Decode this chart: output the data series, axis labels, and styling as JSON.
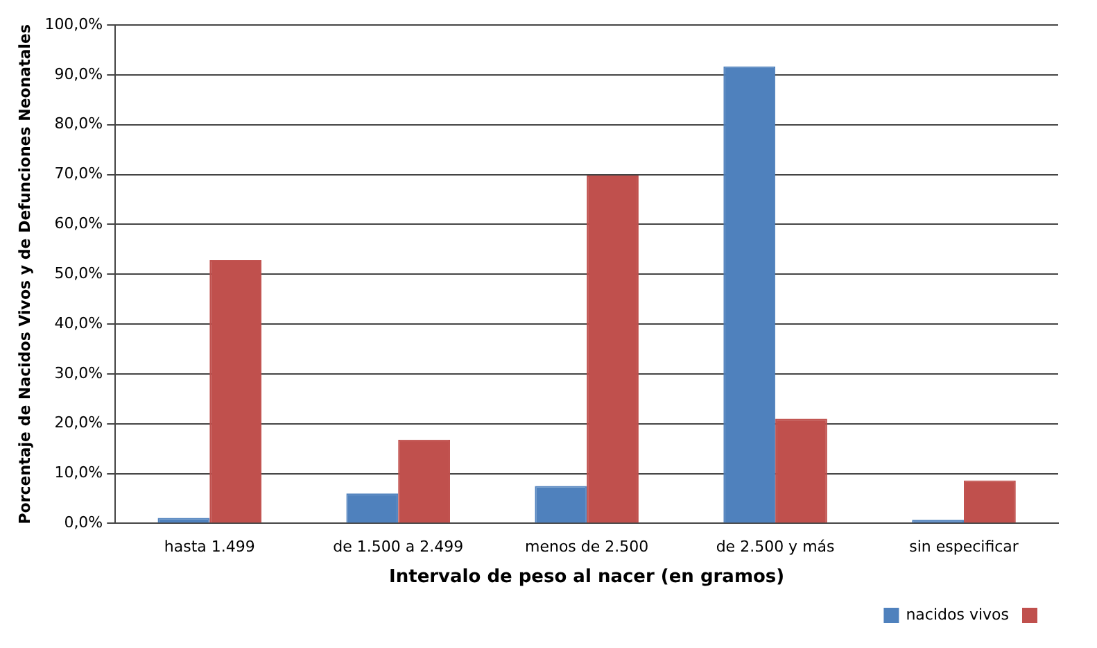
{
  "chart_data": {
    "type": "bar",
    "xlabel": "Intervalo de peso al nacer (en gramos)",
    "ylabel": "Porcentaje de Nacidos Vivos y de Defunciones Neonatales",
    "categories": [
      "hasta 1.499",
      "de 1.500 a 2.499",
      "menos de 2.500",
      "de 2.500 y más",
      "sin especificar"
    ],
    "series": [
      {
        "name": "nacidos vivos",
        "color": "#4f81bd",
        "values": [
          1.1,
          6.0,
          7.5,
          91.7,
          0.7
        ]
      },
      {
        "color": "#c0504d",
        "values": [
          52.8,
          16.8,
          69.8,
          21.0,
          8.6
        ]
      }
    ],
    "ylim": [
      0,
      100
    ],
    "yticks": [
      {
        "value": 0,
        "label": "0,0%"
      },
      {
        "value": 10,
        "label": "10,0%"
      },
      {
        "value": 20,
        "label": "20,0%"
      },
      {
        "value": 30,
        "label": "30,0%"
      },
      {
        "value": 40,
        "label": "40,0%"
      },
      {
        "value": 50,
        "label": "50,0%"
      },
      {
        "value": 60,
        "label": "60,0%"
      },
      {
        "value": 70,
        "label": "70,0%"
      },
      {
        "value": 80,
        "label": "80,0%"
      },
      {
        "value": 90,
        "label": "90,0%"
      },
      {
        "value": 100,
        "label": "100,0%"
      }
    ],
    "grid": "y",
    "legend": "bottom"
  }
}
